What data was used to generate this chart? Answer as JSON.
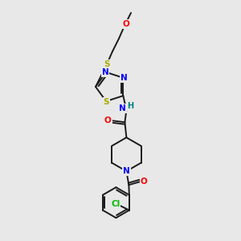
{
  "background_color": "#e8e8e8",
  "bond_color": "#1a1a1a",
  "atom_colors": {
    "O": "#ff0000",
    "N": "#0000ff",
    "S": "#aaaa00",
    "Cl": "#00bb00",
    "H": "#008080",
    "C": "#1a1a1a"
  },
  "figsize": [
    3.0,
    3.0
  ],
  "dpi": 100
}
